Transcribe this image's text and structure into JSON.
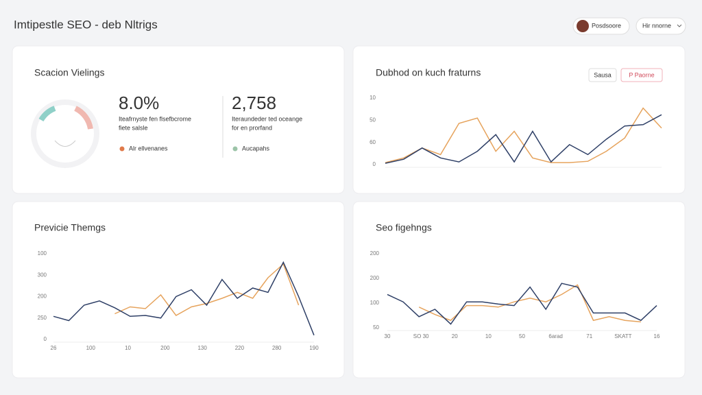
{
  "header": {
    "title": "Imtipestle SEO - deb Nltrigs",
    "user_button": "Posdsoore",
    "dropdown": "Hir nnorne"
  },
  "summary": {
    "title": "Scacion Vielings",
    "metrics": [
      {
        "value": "8.0%",
        "description": [
          "Iteafrnyste fen flsefbcrome",
          "fiete salsle"
        ],
        "legend": "Alr ellvenanes",
        "color": "#e07a4a"
      },
      {
        "value": "2,758",
        "description": [
          "Iteraundeder ted oceange",
          "for en prorfand"
        ],
        "legend": "Aucapahs",
        "color": "#9cc4a8"
      }
    ]
  },
  "buttons": [
    "Sausa",
    "P Paorne"
  ],
  "chart_data": [
    {
      "type": "line",
      "title": "Dubhod on kuch fraturns",
      "y_axis_labels": [
        "10",
        "50",
        "60",
        "0"
      ],
      "ylim": [
        0,
        100
      ],
      "series": [
        {
          "color": "#2e3f66",
          "values": [
            2,
            8,
            25,
            10,
            4,
            20,
            45,
            4,
            50,
            4,
            30,
            15,
            38,
            58,
            60,
            75
          ]
        },
        {
          "color": "#e6a35c",
          "values": [
            3,
            10,
            25,
            15,
            62,
            70,
            20,
            50,
            10,
            3,
            3,
            5,
            20,
            40,
            85,
            55
          ]
        }
      ]
    },
    {
      "type": "line",
      "title": "Previcie Themgs",
      "y_axis_labels": [
        "100",
        "300",
        "200",
        "250",
        "0"
      ],
      "x_axis_labels": [
        "26",
        "100",
        "10",
        "200",
        "130",
        "220",
        "280",
        "190"
      ],
      "ylim": [
        0,
        100
      ],
      "series": [
        {
          "color": "#2e3f66",
          "values": [
            27,
            22,
            40,
            45,
            37,
            27,
            28,
            25,
            50,
            58,
            40,
            70,
            48,
            60,
            55,
            90,
            50,
            5
          ]
        },
        {
          "color": "#e6a35c",
          "values": [
            null,
            null,
            null,
            null,
            30,
            38,
            36,
            52,
            28,
            38,
            42,
            48,
            55,
            48,
            72,
            88,
            40,
            null
          ]
        }
      ]
    },
    {
      "type": "line",
      "title": "Seo figehngs",
      "y_axis_labels": [
        "200",
        "200",
        "100",
        "50"
      ],
      "x_axis_labels": [
        "30",
        "SO 30",
        "20",
        "10",
        "50",
        "6arad",
        "71",
        "SKATT",
        "16"
      ],
      "ylim": [
        0,
        100
      ],
      "series": [
        {
          "color": "#2e3f66",
          "values": [
            45,
            35,
            15,
            25,
            5,
            35,
            35,
            32,
            30,
            55,
            25,
            60,
            55,
            20,
            20,
            20,
            10,
            30
          ]
        },
        {
          "color": "#e6a35c",
          "values": [
            null,
            null,
            28,
            18,
            10,
            30,
            30,
            28,
            35,
            40,
            35,
            45,
            58,
            10,
            15,
            10,
            8,
            null
          ]
        }
      ]
    }
  ]
}
